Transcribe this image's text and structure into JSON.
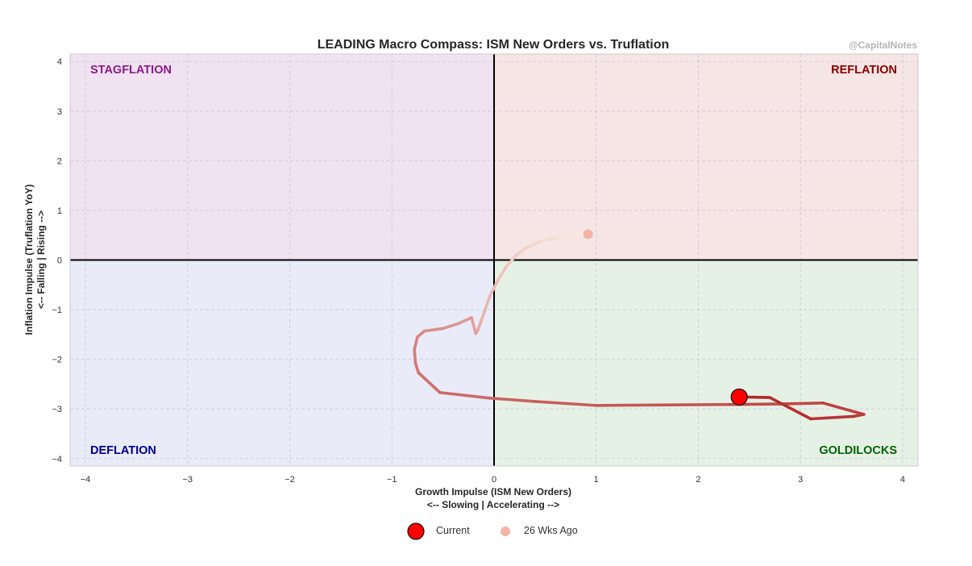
{
  "chart_data": {
    "type": "line",
    "title": "LEADING Macro Compass: ISM New Orders vs. Truflation",
    "watermark": "@CapitalNotes",
    "xlabel": [
      "Growth Impulse (ISM New Orders)",
      "<-- Slowing   |   Accelerating -->"
    ],
    "ylabel": [
      "Inflation Impulse (Truflation YoY)",
      "<-- Falling   |   Rising -->"
    ],
    "xlim": [
      -4.15,
      4.15
    ],
    "ylim": [
      -4.15,
      4.15
    ],
    "xticks": [
      -4,
      -3,
      -2,
      -1,
      0,
      1,
      2,
      3,
      4
    ],
    "yticks": [
      -4,
      -3,
      -2,
      -1,
      0,
      1,
      2,
      3,
      4
    ],
    "tick_labels": [
      "−4",
      "−3",
      "−2",
      "−1",
      "0",
      "1",
      "2",
      "3",
      "4"
    ],
    "grid": true,
    "quadrants": [
      {
        "name": "STAGFLATION",
        "position": "top-left",
        "color": "#8b1a8b",
        "bg": "#f1e2f1"
      },
      {
        "name": "REFLATION",
        "position": "top-right",
        "color": "#8b0000",
        "bg": "#f6e5e5"
      },
      {
        "name": "DEFLATION",
        "position": "bottom-left",
        "color": "#00008b",
        "bg": "#e9ebf9"
      },
      {
        "name": "GOLDILOCKS",
        "position": "bottom-right",
        "color": "#006400",
        "bg": "#e6f1e6"
      }
    ],
    "series": [
      {
        "x": [
          0.92,
          0.78,
          0.6,
          0.45,
          0.32,
          0.22,
          0.12,
          0.04,
          -0.04,
          -0.09,
          -0.13,
          -0.16,
          -0.18,
          -0.22,
          -0.35,
          -0.5,
          -0.68,
          -0.75,
          -0.78,
          -0.77,
          -0.74,
          -0.53,
          -0.05,
          0.4,
          1.0,
          1.6,
          2.3,
          2.8,
          3.22,
          3.62,
          3.52,
          3.1,
          2.7,
          2.45,
          2.4
        ],
        "y": [
          0.52,
          0.5,
          0.44,
          0.37,
          0.25,
          0.1,
          -0.13,
          -0.4,
          -0.72,
          -1.02,
          -1.25,
          -1.42,
          -1.48,
          -1.16,
          -1.28,
          -1.38,
          -1.43,
          -1.55,
          -1.8,
          -2.07,
          -2.27,
          -2.67,
          -2.78,
          -2.85,
          -2.93,
          -2.92,
          -2.91,
          -2.9,
          -2.88,
          -3.11,
          -3.15,
          -3.2,
          -2.77,
          -2.76,
          -2.76
        ]
      }
    ],
    "legend": [
      {
        "label": "Current",
        "color": "#ff0000"
      },
      {
        "label": "26 Wks Ago",
        "color": "#f4b3a7"
      }
    ],
    "legend_position": "bottom-center"
  }
}
